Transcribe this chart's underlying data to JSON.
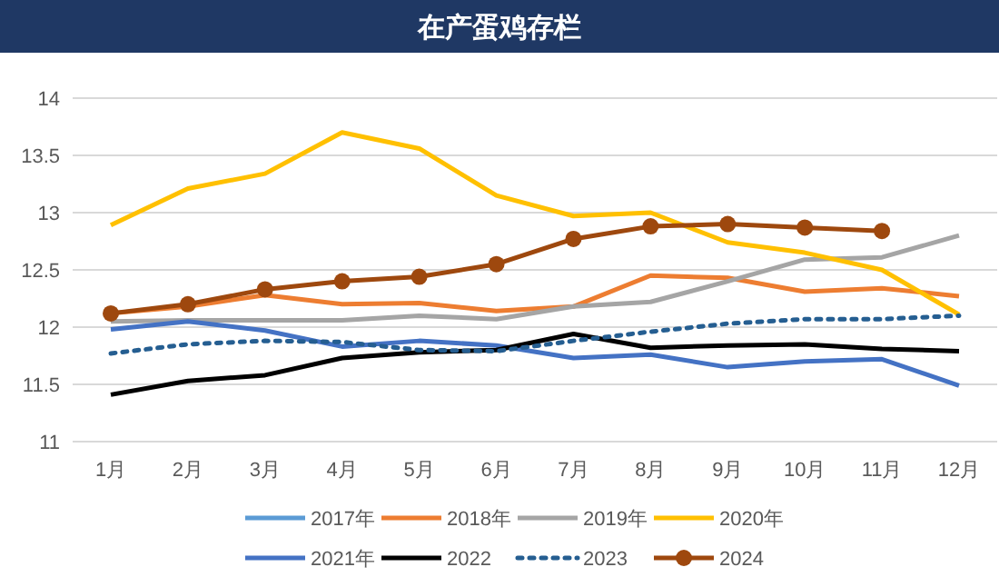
{
  "chart_data": {
    "type": "line",
    "title": "在产蛋鸡存栏",
    "categories": [
      "1月",
      "2月",
      "3月",
      "4月",
      "5月",
      "6月",
      "7月",
      "8月",
      "9月",
      "10月",
      "11月",
      "12月"
    ],
    "ylim": [
      11,
      14
    ],
    "yticks": [
      11,
      11.5,
      12,
      12.5,
      13,
      13.5,
      14
    ],
    "grid": "y",
    "legend": "bottom",
    "marker": "none",
    "line_style": "solid",
    "series": [
      {
        "name": "2017年",
        "color": "#5b9bd5",
        "values": [
          null,
          null,
          null,
          null,
          null,
          null,
          null,
          null,
          null,
          null,
          null,
          null
        ]
      },
      {
        "name": "2018年",
        "color": "#ed7d31",
        "values": [
          12.12,
          12.18,
          12.28,
          12.2,
          12.21,
          12.14,
          12.18,
          12.45,
          12.43,
          12.31,
          12.34,
          12.27
        ]
      },
      {
        "name": "2019年",
        "color": "#a5a5a5",
        "values": [
          12.05,
          12.06,
          12.06,
          12.06,
          12.1,
          12.07,
          12.18,
          12.22,
          12.4,
          12.59,
          12.61,
          12.8
        ]
      },
      {
        "name": "2020年",
        "color": "#ffc000",
        "values": [
          12.89,
          13.21,
          13.34,
          13.7,
          13.56,
          13.15,
          12.97,
          13.0,
          12.74,
          12.65,
          12.5,
          12.11
        ]
      },
      {
        "name": "2021年",
        "color": "#4472c4",
        "values": [
          11.98,
          12.05,
          11.97,
          11.83,
          11.88,
          11.84,
          11.73,
          11.76,
          11.65,
          11.7,
          11.72,
          11.49
        ]
      },
      {
        "name": "2022",
        "color": "#000000",
        "values": [
          11.41,
          11.53,
          11.58,
          11.73,
          11.78,
          11.8,
          11.94,
          11.82,
          11.84,
          11.85,
          11.81,
          11.79
        ]
      },
      {
        "name": "2023",
        "color": "#255e91",
        "line_style": "dotted",
        "values": [
          11.77,
          11.85,
          11.88,
          11.87,
          11.8,
          11.79,
          11.88,
          11.96,
          12.03,
          12.07,
          12.07,
          12.1
        ]
      },
      {
        "name": "2024",
        "color": "#9e480e",
        "marker": "circle",
        "values": [
          12.12,
          12.2,
          12.33,
          12.4,
          12.44,
          12.55,
          12.77,
          12.88,
          12.9,
          12.87,
          12.84,
          null
        ]
      }
    ]
  }
}
